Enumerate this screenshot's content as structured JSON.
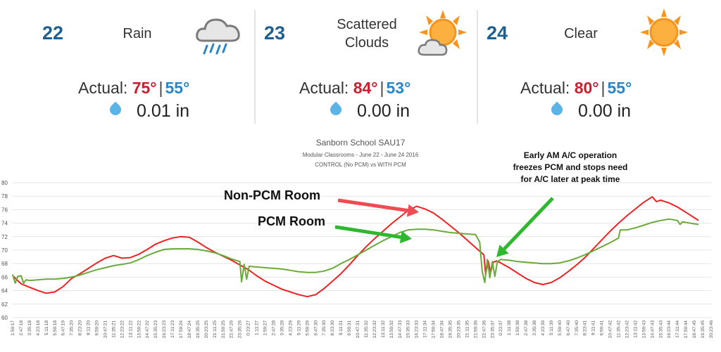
{
  "weather": [
    {
      "day": "22",
      "condition": "Rain",
      "icon": "rain-cloud-icon",
      "actual_label": "Actual:",
      "high": "75°",
      "low": "55°",
      "precip": "0.01 in"
    },
    {
      "day": "23",
      "condition": "Scattered Clouds",
      "icon": "sun-cloud-icon",
      "actual_label": "Actual:",
      "high": "84°",
      "low": "53°",
      "precip": "0.00 in"
    },
    {
      "day": "24",
      "condition": "Clear",
      "icon": "sun-icon",
      "actual_label": "Actual:",
      "high": "80°",
      "low": "55°",
      "precip": "0.00 in"
    }
  ],
  "colors": {
    "high": "#c8202f",
    "low": "#2a86c5",
    "day": "#1f5f8f",
    "non_pcm": "#ee2222",
    "pcm": "#6aaa3a",
    "arrow_red": "#ef4b55",
    "arrow_green": "#2db82d"
  },
  "chart_data": {
    "type": "line",
    "title": "Sanborn School SAU17",
    "subtitle1": "Modular Classrooms - June 22 - June 24 2016",
    "subtitle2": "CONTROL (No PCM) vs WITH PCM",
    "ylim": [
      60,
      80
    ],
    "yticks": [
      "60",
      "62",
      "64",
      "66",
      "68",
      "70",
      "72",
      "74",
      "76",
      "78",
      "80"
    ],
    "xticks": [
      "1:59:17",
      "2:47:18",
      "3:35:18",
      "4:23:18",
      "5:11:18",
      "5:59:18",
      "6:47:19",
      "7:35:20",
      "8:23:20",
      "9:11:20",
      "9:59:20",
      "10:47:21",
      "11:35:21",
      "12:23:22",
      "13:11:22",
      "13:59:22",
      "14:47:22",
      "15:35:23",
      "16:23:23",
      "17:11:23",
      "17:59:24",
      "18:47:24",
      "19:35:25",
      "20:23:25",
      "21:11:25",
      "21:59:25",
      "22:47:26",
      "23:35:26",
      "0:23:27",
      "1:11:27",
      "1:59:27",
      "2:47:28",
      "3:35:28",
      "4:23:29",
      "5:11:29",
      "5:59:29",
      "6:47:30",
      "7:35:30",
      "8:23:30",
      "9:11:31",
      "9:59:31",
      "10:47:31",
      "11:35:32",
      "12:23:32",
      "13:11:32",
      "13:59:32",
      "14:47:33",
      "15:35:33",
      "16:23:33",
      "17:11:34",
      "17:59:34",
      "18:47:34",
      "19:35:35",
      "20:23:35",
      "21:11:35",
      "21:59:36",
      "22:47:36",
      "23:35:37",
      "0:23:37",
      "1:11:38",
      "1:59:38",
      "2:47:38",
      "3:35:38",
      "4:23:39",
      "5:11:39",
      "5:59:40",
      "6:47:40",
      "7:35:40",
      "8:23:41",
      "9:11:41",
      "9:59:41",
      "10:47:42",
      "11:35:42",
      "12:23:42",
      "13:11:42",
      "13:59:43",
      "14:47:43",
      "15:35:43",
      "16:23:44",
      "17:11:44",
      "17:59:44",
      "18:47:45",
      "19:35:45",
      "20:23:46"
    ],
    "series": [
      {
        "name": "Non-PCM Room",
        "color": "#ee2222",
        "points": [
          [
            0,
            66.2
          ],
          [
            1,
            65
          ],
          [
            2,
            64.5
          ],
          [
            3,
            64
          ],
          [
            4,
            63.6
          ],
          [
            5,
            63.8
          ],
          [
            6,
            64.6
          ],
          [
            7,
            65.8
          ],
          [
            8,
            66.5
          ],
          [
            9,
            67.3
          ],
          [
            10,
            68.1
          ],
          [
            11,
            68.8
          ],
          [
            12,
            69.2
          ],
          [
            13,
            68.8
          ],
          [
            14,
            68.9
          ],
          [
            15,
            69.4
          ],
          [
            16,
            70.1
          ],
          [
            17,
            70.9
          ],
          [
            18,
            71.4
          ],
          [
            19,
            71.8
          ],
          [
            20,
            72
          ],
          [
            21,
            71.9
          ],
          [
            22,
            71.2
          ],
          [
            23,
            70.4
          ],
          [
            24,
            69.7
          ],
          [
            25,
            69.1
          ],
          [
            26,
            68.5
          ],
          [
            27,
            67.8
          ],
          [
            28,
            67.1
          ],
          [
            29,
            66.2
          ],
          [
            30,
            65.4
          ],
          [
            31,
            64.8
          ],
          [
            32,
            64.2
          ],
          [
            33,
            63.8
          ],
          [
            34,
            63.4
          ],
          [
            35,
            63.1
          ],
          [
            36,
            63.4
          ],
          [
            37,
            64.3
          ],
          [
            38,
            65.4
          ],
          [
            39,
            66.5
          ],
          [
            40,
            67.8
          ],
          [
            41,
            69.2
          ],
          [
            42,
            70.5
          ],
          [
            43,
            71.7
          ],
          [
            44,
            72.8
          ],
          [
            45,
            73.9
          ],
          [
            46,
            74.9
          ],
          [
            47,
            75.9
          ],
          [
            48,
            76.5
          ],
          [
            49,
            76.1
          ],
          [
            50,
            75.5
          ],
          [
            51,
            74.6
          ],
          [
            52,
            73.6
          ],
          [
            53,
            72.6
          ],
          [
            54,
            71.5
          ],
          [
            55,
            70.4
          ],
          [
            56,
            69.3
          ],
          [
            56.2,
            66.4
          ],
          [
            56.5,
            68.4
          ],
          [
            56.8,
            66.7
          ],
          [
            57.1,
            68.2
          ],
          [
            57.5,
            68.4
          ],
          [
            58,
            68.1
          ],
          [
            59,
            67.4
          ],
          [
            60,
            66.6
          ],
          [
            61,
            65.8
          ],
          [
            62,
            65.2
          ],
          [
            63,
            64.9
          ],
          [
            64,
            65.2
          ],
          [
            65,
            65.9
          ],
          [
            66,
            66.8
          ],
          [
            67,
            67.8
          ],
          [
            68,
            68.9
          ],
          [
            69,
            70.2
          ],
          [
            70,
            71.5
          ],
          [
            71,
            72.8
          ],
          [
            72,
            74
          ],
          [
            73,
            75.1
          ],
          [
            74,
            76.1
          ],
          [
            75,
            77.1
          ],
          [
            76,
            77.9
          ],
          [
            76.5,
            77.2
          ],
          [
            77,
            77.4
          ],
          [
            78,
            77
          ],
          [
            79,
            76.4
          ],
          [
            80,
            75.6
          ],
          [
            81,
            74.8
          ],
          [
            81.5,
            74.4
          ]
        ]
      },
      {
        "name": "PCM Room",
        "color": "#6aaa3a",
        "points": [
          [
            0,
            66.4
          ],
          [
            0.3,
            65.1
          ],
          [
            0.6,
            66.1
          ],
          [
            1,
            66.2
          ],
          [
            1.3,
            65.1
          ],
          [
            1.6,
            65.6
          ],
          [
            2,
            65.5
          ],
          [
            3,
            65.6
          ],
          [
            4,
            65.7
          ],
          [
            5,
            65.7
          ],
          [
            6,
            65.8
          ],
          [
            7,
            66
          ],
          [
            8,
            66.3
          ],
          [
            9,
            66.7
          ],
          [
            10,
            67.1
          ],
          [
            11,
            67.4
          ],
          [
            12,
            67.7
          ],
          [
            13,
            67.9
          ],
          [
            14,
            68.1
          ],
          [
            15,
            68.6
          ],
          [
            16,
            69.2
          ],
          [
            17,
            69.7
          ],
          [
            18,
            70.1
          ],
          [
            19,
            70.2
          ],
          [
            20,
            70.2
          ],
          [
            21,
            70.2
          ],
          [
            22,
            70.1
          ],
          [
            23,
            69.9
          ],
          [
            24,
            69.6
          ],
          [
            25,
            69.2
          ],
          [
            26,
            68.7
          ],
          [
            27,
            68.3
          ],
          [
            27.2,
            65.3
          ],
          [
            27.5,
            67.9
          ],
          [
            27.8,
            65.7
          ],
          [
            28.1,
            67.6
          ],
          [
            29,
            67.5
          ],
          [
            30,
            67.4
          ],
          [
            31,
            67.3
          ],
          [
            32,
            67.2
          ],
          [
            33,
            67
          ],
          [
            34,
            66.8
          ],
          [
            35,
            66.7
          ],
          [
            36,
            66.7
          ],
          [
            37,
            66.9
          ],
          [
            38,
            67.3
          ],
          [
            39,
            68
          ],
          [
            40,
            68.6
          ],
          [
            41,
            69.3
          ],
          [
            42,
            70
          ],
          [
            43,
            70.7
          ],
          [
            44,
            71.4
          ],
          [
            45,
            72
          ],
          [
            46,
            72.6
          ],
          [
            47,
            73
          ],
          [
            48,
            73.1
          ],
          [
            49,
            73.1
          ],
          [
            50,
            73
          ],
          [
            51,
            72.8
          ],
          [
            52,
            72.6
          ],
          [
            53,
            72.5
          ],
          [
            54,
            72.4
          ],
          [
            55,
            72.3
          ],
          [
            55.5,
            71.2
          ],
          [
            55.8,
            66.8
          ],
          [
            56.1,
            65.2
          ],
          [
            56.4,
            68.6
          ],
          [
            56.7,
            65.9
          ],
          [
            57,
            68.3
          ],
          [
            57.3,
            66.1
          ],
          [
            57.6,
            68.3
          ],
          [
            58,
            68.6
          ],
          [
            59,
            68.5
          ],
          [
            60,
            68.3
          ],
          [
            61,
            68.2
          ],
          [
            62,
            68.1
          ],
          [
            63,
            68
          ],
          [
            64,
            68
          ],
          [
            65,
            68.1
          ],
          [
            66,
            68.4
          ],
          [
            67,
            68.8
          ],
          [
            68,
            69.3
          ],
          [
            69,
            69.9
          ],
          [
            70,
            70.5
          ],
          [
            71,
            71.1
          ],
          [
            72,
            71.8
          ],
          [
            72.2,
            73
          ],
          [
            73,
            73
          ],
          [
            74,
            73.3
          ],
          [
            75,
            73.7
          ],
          [
            76,
            74.1
          ],
          [
            77,
            74.4
          ],
          [
            78,
            74.6
          ],
          [
            79,
            74.4
          ],
          [
            79.3,
            73.8
          ],
          [
            79.6,
            74.2
          ],
          [
            80.5,
            74
          ],
          [
            81.5,
            73.8
          ]
        ]
      }
    ],
    "labels": {
      "non_pcm": "Non-PCM Room",
      "pcm": "PCM Room",
      "note_line1": "Early AM A/C operation",
      "note_line2": "freezes PCM and stops need",
      "note_line3": "for A/C later at peak time"
    }
  }
}
